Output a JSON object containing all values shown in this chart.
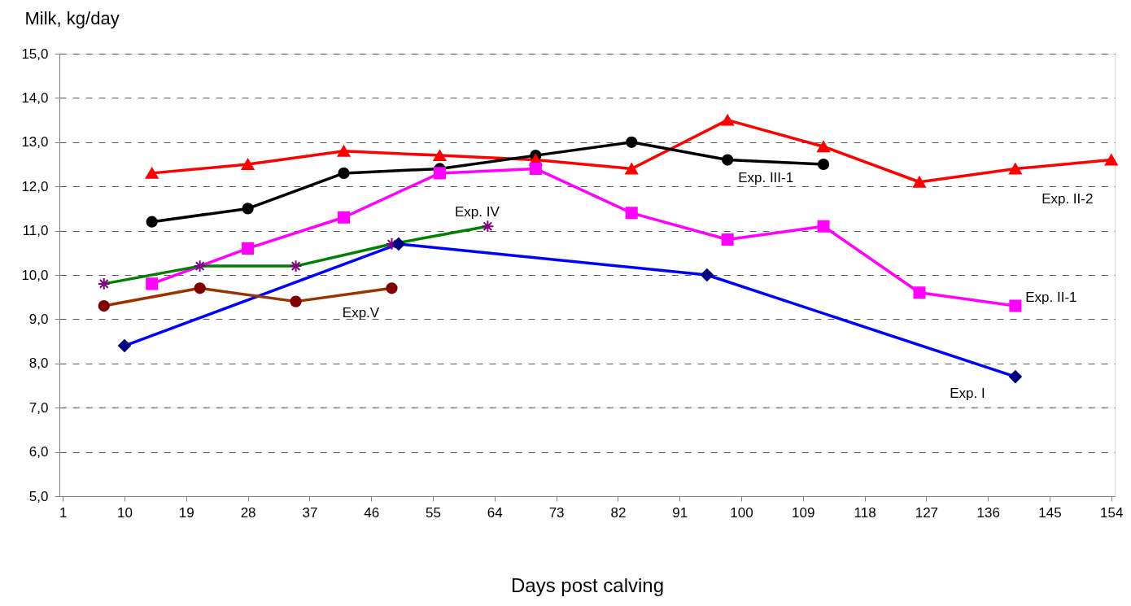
{
  "chart_data": {
    "type": "line",
    "ylabel": "Milk, kg/day",
    "xlabel": "Days post calving",
    "xlim": [
      0.5,
      154.5
    ],
    "xticks": [
      1,
      10,
      19,
      28,
      37,
      46,
      55,
      64,
      73,
      82,
      91,
      100,
      109,
      118,
      127,
      136,
      145,
      154
    ],
    "ylim": [
      5,
      15
    ],
    "yticks": [
      {
        "value": 5,
        "label": "5,0"
      },
      {
        "value": 6,
        "label": "6,0"
      },
      {
        "value": 7,
        "label": "7,0"
      },
      {
        "value": 8,
        "label": "8,0"
      },
      {
        "value": 9,
        "label": "9,0"
      },
      {
        "value": 10,
        "label": "10,0"
      },
      {
        "value": 11,
        "label": "11,0"
      },
      {
        "value": 12,
        "label": "12,0"
      },
      {
        "value": 13,
        "label": "13,0"
      },
      {
        "value": 14,
        "label": "14,0"
      },
      {
        "value": 15,
        "label": "15,0"
      }
    ],
    "grid": "y",
    "legend": false,
    "line_style": "solid",
    "series": [
      {
        "name": "Exp. I",
        "color": "#0000ff",
        "colors": [
          "#000080",
          "#000080",
          "#000080",
          "#000080"
        ],
        "marker": "diamond",
        "x": [
          10,
          50,
          95,
          140
        ],
        "values": [
          8.4,
          10.7,
          10.0,
          7.7
        ]
      },
      {
        "name": "Exp. II-1",
        "color": "#ff00ff",
        "colors": [
          "#ff00ff",
          "#ff00ff",
          "#ff00ff",
          "#ff00ff",
          "#ff00ff",
          "#ff00ff",
          "#ff00ff",
          "#ff00ff",
          "#ff00ff",
          "#ff00ff"
        ],
        "marker": "square",
        "x": [
          14,
          28,
          42,
          56,
          70,
          84,
          98,
          112,
          126,
          140
        ],
        "values": [
          9.8,
          10.6,
          11.3,
          12.3,
          12.4,
          11.4,
          10.8,
          11.1,
          9.6,
          9.3
        ]
      },
      {
        "name": "Exp. II-2",
        "color": "#ff0000",
        "colors": [
          "#ff0000",
          "#ff0000",
          "#ff0000",
          "#ff0000",
          "#ff0000",
          "#ff0000",
          "#ff0000",
          "#ff0000",
          "#ff0000",
          "#ff0000",
          "#ff0000"
        ],
        "marker": "triangle",
        "x": [
          14,
          28,
          42,
          56,
          70,
          84,
          98,
          112,
          126,
          140,
          154
        ],
        "values": [
          12.3,
          12.5,
          12.8,
          12.7,
          12.6,
          12.4,
          13.5,
          12.9,
          12.1,
          12.4,
          12.6
        ]
      },
      {
        "name": "Exp. III-1",
        "color": "#000000",
        "colors": [
          "#000000",
          "#000000",
          "#000000",
          "#000000",
          "#000000",
          "#000000",
          "#000000",
          "#000000"
        ],
        "marker": "circle",
        "x": [
          14,
          28,
          42,
          56,
          70,
          84,
          98,
          112
        ],
        "values": [
          11.2,
          11.5,
          12.3,
          12.4,
          12.7,
          13.0,
          12.6,
          12.5
        ]
      },
      {
        "name": "Exp. IV",
        "color": "#008000",
        "colors": [
          "#800080",
          "#800080",
          "#800080",
          "#800080",
          "#800080"
        ],
        "marker": "cross",
        "x": [
          7,
          21,
          35,
          49,
          63
        ],
        "values": [
          9.8,
          10.2,
          10.2,
          10.7,
          11.1
        ]
      },
      {
        "name": "Exp.V",
        "color": "#993300",
        "colors": [
          "#800000",
          "#800000",
          "#800000",
          "#800000"
        ],
        "marker": "circle",
        "x": [
          7,
          21,
          35,
          49
        ],
        "values": [
          9.3,
          9.7,
          9.4,
          9.7
        ]
      }
    ]
  }
}
